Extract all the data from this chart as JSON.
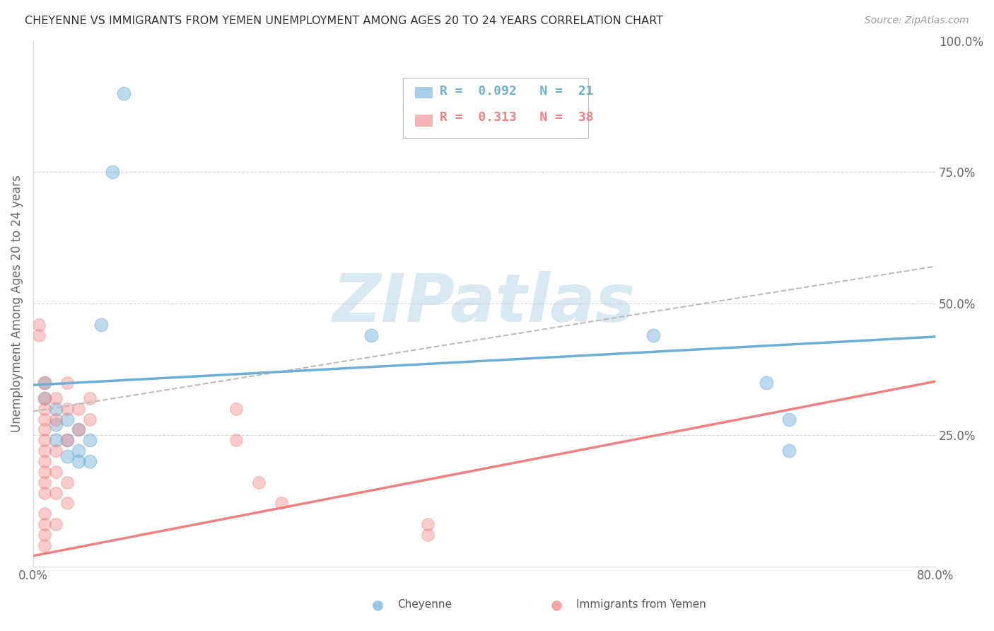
{
  "title": "CHEYENNE VS IMMIGRANTS FROM YEMEN UNEMPLOYMENT AMONG AGES 20 TO 24 YEARS CORRELATION CHART",
  "source": "Source: ZipAtlas.com",
  "ylabel": "Unemployment Among Ages 20 to 24 years",
  "xlim": [
    0,
    0.8
  ],
  "ylim": [
    0,
    1.0
  ],
  "yticks": [
    0.0,
    0.25,
    0.5,
    0.75,
    1.0
  ],
  "yticklabels": [
    "",
    "25.0%",
    "50.0%",
    "75.0%",
    "100.0%"
  ],
  "cheyenne_color": "#6baed6",
  "yemen_color": "#f08080",
  "cheyenne_R": 0.092,
  "cheyenne_N": 21,
  "yemen_R": 0.313,
  "yemen_N": 38,
  "cheyenne_scatter": [
    [
      0.01,
      0.35
    ],
    [
      0.01,
      0.32
    ],
    [
      0.02,
      0.3
    ],
    [
      0.02,
      0.27
    ],
    [
      0.02,
      0.24
    ],
    [
      0.03,
      0.28
    ],
    [
      0.03,
      0.24
    ],
    [
      0.03,
      0.21
    ],
    [
      0.04,
      0.26
    ],
    [
      0.04,
      0.22
    ],
    [
      0.04,
      0.2
    ],
    [
      0.05,
      0.24
    ],
    [
      0.05,
      0.2
    ],
    [
      0.06,
      0.46
    ],
    [
      0.07,
      0.75
    ],
    [
      0.08,
      0.9
    ],
    [
      0.3,
      0.44
    ],
    [
      0.55,
      0.44
    ],
    [
      0.65,
      0.35
    ],
    [
      0.67,
      0.28
    ],
    [
      0.67,
      0.22
    ]
  ],
  "yemen_scatter": [
    [
      0.005,
      0.46
    ],
    [
      0.005,
      0.44
    ],
    [
      0.01,
      0.35
    ],
    [
      0.01,
      0.32
    ],
    [
      0.01,
      0.3
    ],
    [
      0.01,
      0.28
    ],
    [
      0.01,
      0.26
    ],
    [
      0.01,
      0.24
    ],
    [
      0.01,
      0.22
    ],
    [
      0.01,
      0.2
    ],
    [
      0.01,
      0.18
    ],
    [
      0.01,
      0.16
    ],
    [
      0.01,
      0.14
    ],
    [
      0.01,
      0.1
    ],
    [
      0.01,
      0.08
    ],
    [
      0.01,
      0.06
    ],
    [
      0.01,
      0.04
    ],
    [
      0.02,
      0.32
    ],
    [
      0.02,
      0.28
    ],
    [
      0.02,
      0.22
    ],
    [
      0.02,
      0.18
    ],
    [
      0.02,
      0.14
    ],
    [
      0.02,
      0.08
    ],
    [
      0.03,
      0.35
    ],
    [
      0.03,
      0.3
    ],
    [
      0.03,
      0.24
    ],
    [
      0.03,
      0.16
    ],
    [
      0.03,
      0.12
    ],
    [
      0.04,
      0.3
    ],
    [
      0.04,
      0.26
    ],
    [
      0.05,
      0.32
    ],
    [
      0.05,
      0.28
    ],
    [
      0.18,
      0.3
    ],
    [
      0.18,
      0.24
    ],
    [
      0.2,
      0.16
    ],
    [
      0.22,
      0.12
    ],
    [
      0.35,
      0.08
    ],
    [
      0.35,
      0.06
    ]
  ],
  "background_color": "#ffffff",
  "watermark_zip": "ZIP",
  "watermark_atlas": "atlas",
  "watermark_color": "#d8e8f0"
}
